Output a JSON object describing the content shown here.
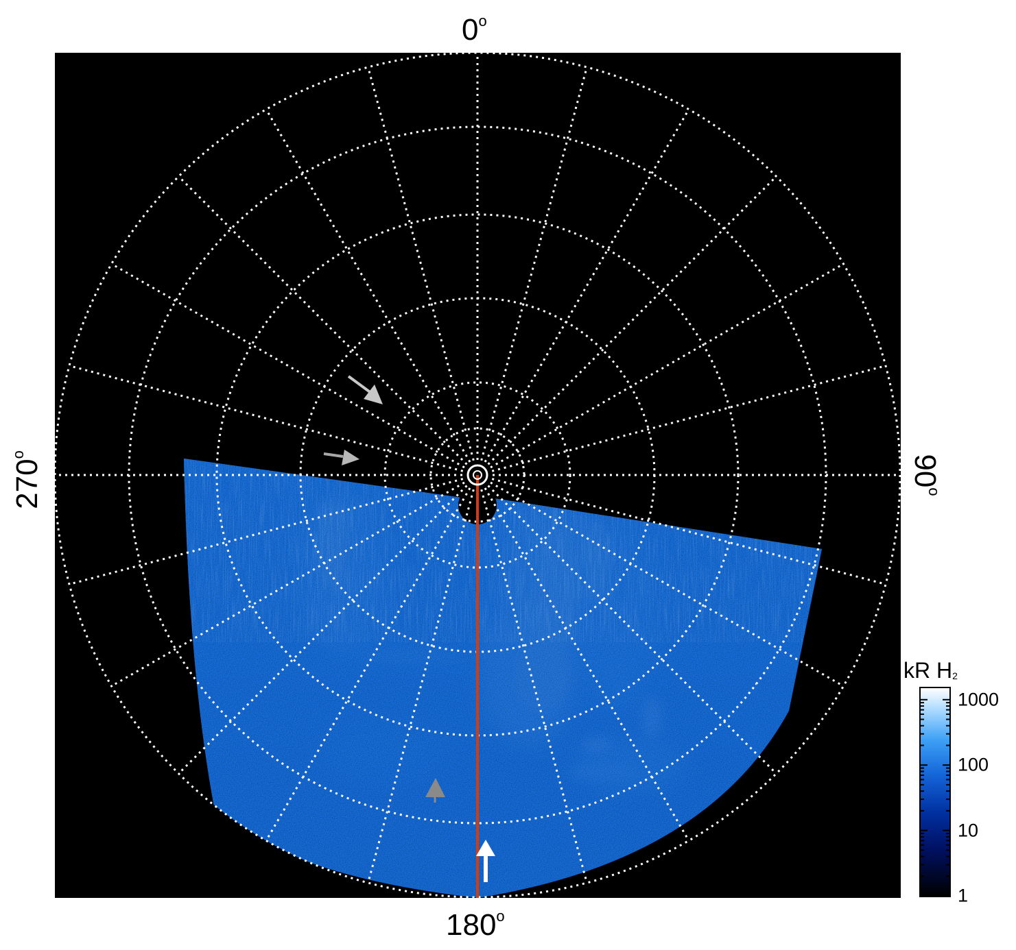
{
  "axis_labels": {
    "top": "0",
    "bottom": "180",
    "left": "270",
    "right": "90",
    "degree_symbol": "o"
  },
  "colorbar": {
    "title": "kR H",
    "title_subscript": "2",
    "ticks": [
      {
        "label": "1000",
        "value": 1000
      },
      {
        "label": "100",
        "value": 100
      },
      {
        "label": "10",
        "value": 10
      },
      {
        "label": "1",
        "value": 1
      }
    ],
    "scale": "log",
    "range": [
      1,
      1500
    ]
  },
  "colors": {
    "background": "#000000",
    "grid": "#ffffff",
    "meridian_line": "#c8401a",
    "arrow_white": "#ffffff",
    "arrow_grey": "#c8c8c8",
    "arrow_dark_grey": "#8a8a8a",
    "aurora_deep": "#0030a0",
    "aurora_mid": "#1a78e8",
    "aurora_bright": "#ffffff"
  },
  "icons": {
    "arrows": [
      "white-arrow-icon",
      "grey-arrow-icon",
      "dark-grey-arrow-icon"
    ],
    "pole_marker": "pole-circle-icon"
  }
}
